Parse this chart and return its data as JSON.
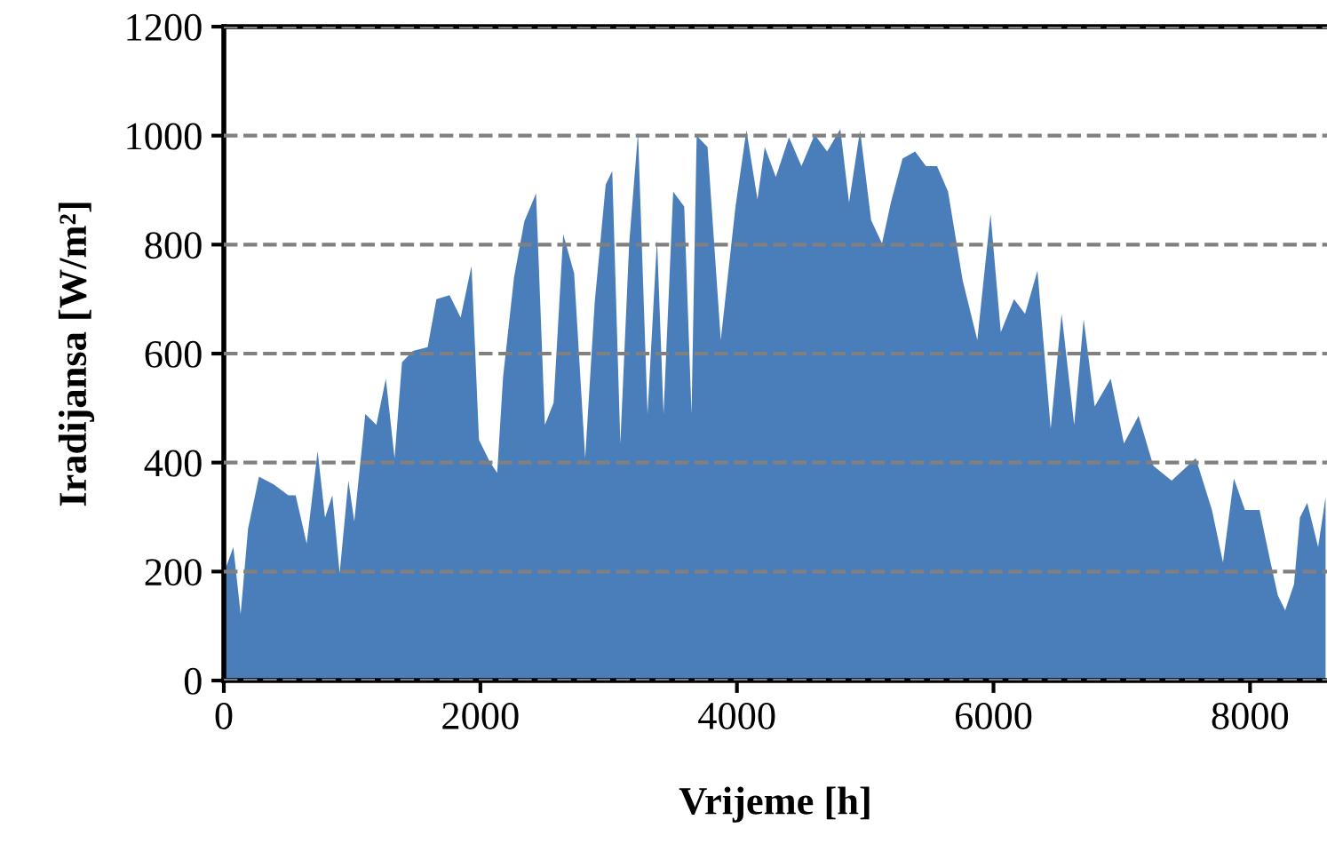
{
  "chart_data": {
    "type": "area",
    "xlabel": "Vrijeme [h]",
    "ylabel": "Iradijansa [W/m²]",
    "x": [
      0,
      74,
      131,
      189,
      274,
      389,
      503,
      560,
      646,
      731,
      789,
      846,
      903,
      971,
      1017,
      1103,
      1189,
      1263,
      1331,
      1389,
      1474,
      1589,
      1657,
      1760,
      1846,
      1931,
      1989,
      2074,
      2131,
      2177,
      2263,
      2343,
      2434,
      2503,
      2571,
      2646,
      2731,
      2817,
      2891,
      2977,
      3028,
      3091,
      3160,
      3229,
      3303,
      3377,
      3428,
      3503,
      3589,
      3646,
      3686,
      3771,
      3874,
      3989,
      4074,
      4160,
      4217,
      4303,
      4406,
      4503,
      4606,
      4703,
      4806,
      4874,
      4960,
      5046,
      5131,
      5200,
      5291,
      5389,
      5474,
      5560,
      5646,
      5760,
      5874,
      5977,
      6057,
      6160,
      6246,
      6343,
      6446,
      6531,
      6629,
      6703,
      6789,
      6914,
      7017,
      7131,
      7246,
      7389,
      7577,
      7703,
      7789,
      7874,
      7960,
      8074,
      8160,
      8217,
      8274,
      8343,
      8389,
      8446,
      8531,
      8589
    ],
    "series": [
      {
        "color": "#4a7ebb",
        "values": [
          197,
          245,
          122,
          279,
          374,
          360,
          340,
          340,
          251,
          421,
          299,
          340,
          197,
          367,
          292,
          489,
          469,
          554,
          408,
          584,
          605,
          612,
          700,
          707,
          666,
          761,
          442,
          401,
          381,
          557,
          741,
          843,
          894,
          469,
          510,
          819,
          747,
          408,
          693,
          910,
          935,
          435,
          802,
          1006,
          489,
          809,
          489,
          897,
          870,
          489,
          1000,
          979,
          625,
          870,
          1010,
          883,
          979,
          924,
          997,
          944,
          1002,
          971,
          1012,
          877,
          1010,
          845,
          802,
          877,
          958,
          971,
          944,
          944,
          897,
          734,
          625,
          856,
          639,
          700,
          673,
          752,
          462,
          673,
          469,
          663,
          503,
          554,
          435,
          486,
          394,
          367,
          408,
          313,
          217,
          371,
          313,
          313,
          217,
          156,
          129,
          177,
          299,
          326,
          245,
          337
        ]
      }
    ],
    "xlim": [
      0,
      8600
    ],
    "xticks": [
      0,
      2000,
      4000,
      6000,
      8000
    ],
    "ylim": [
      0,
      1200
    ],
    "yticks": [
      0,
      200,
      400,
      600,
      800,
      1000,
      1200
    ],
    "grid": "y"
  }
}
